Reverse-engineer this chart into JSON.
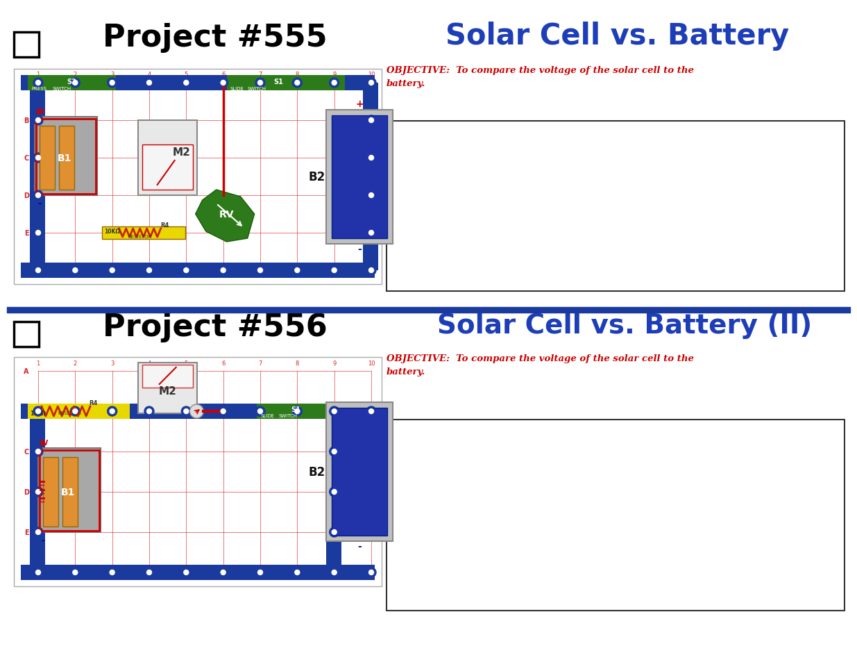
{
  "page_bg": "#ffffff",
  "title1": "Project #555",
  "title1_color": "#000000",
  "subtitle1": "Solar Cell vs. Battery",
  "subtitle1_color": "#1e3eb8",
  "objective1": "OBJECTIVE:  To compare the voltage of the solar cell to the\nbattery.",
  "objective1_color": "#cc0000",
  "title2": "Project #556",
  "title2_color": "#000000",
  "subtitle2": "Solar Cell vs. Battery (II)",
  "subtitle2_color": "#1e3eb8",
  "objective2": "OBJECTIVE:  To compare the voltage of the solar cell to the\nbattery.",
  "objective2_color": "#cc0000",
  "divider_color": "#1a3a9e",
  "breadboard_blue": "#1a3a9e",
  "breadboard_blue_dark": "#0e2266",
  "breadboard_green": "#2d7a1a",
  "breadboard_yellow": "#e8d800",
  "note_box_border": "#333333",
  "note_box_bg": "#ffffff",
  "grid_red": "#dd2222",
  "battery_grey": "#a0a0a0",
  "battery_orange": "#e8922a",
  "meter_grey": "#cccccc",
  "solar_blue": "#2233aa",
  "solar_grey": "#b0b0b0",
  "connector_blue": "#1a3a9e",
  "wire_red": "#cc0000"
}
